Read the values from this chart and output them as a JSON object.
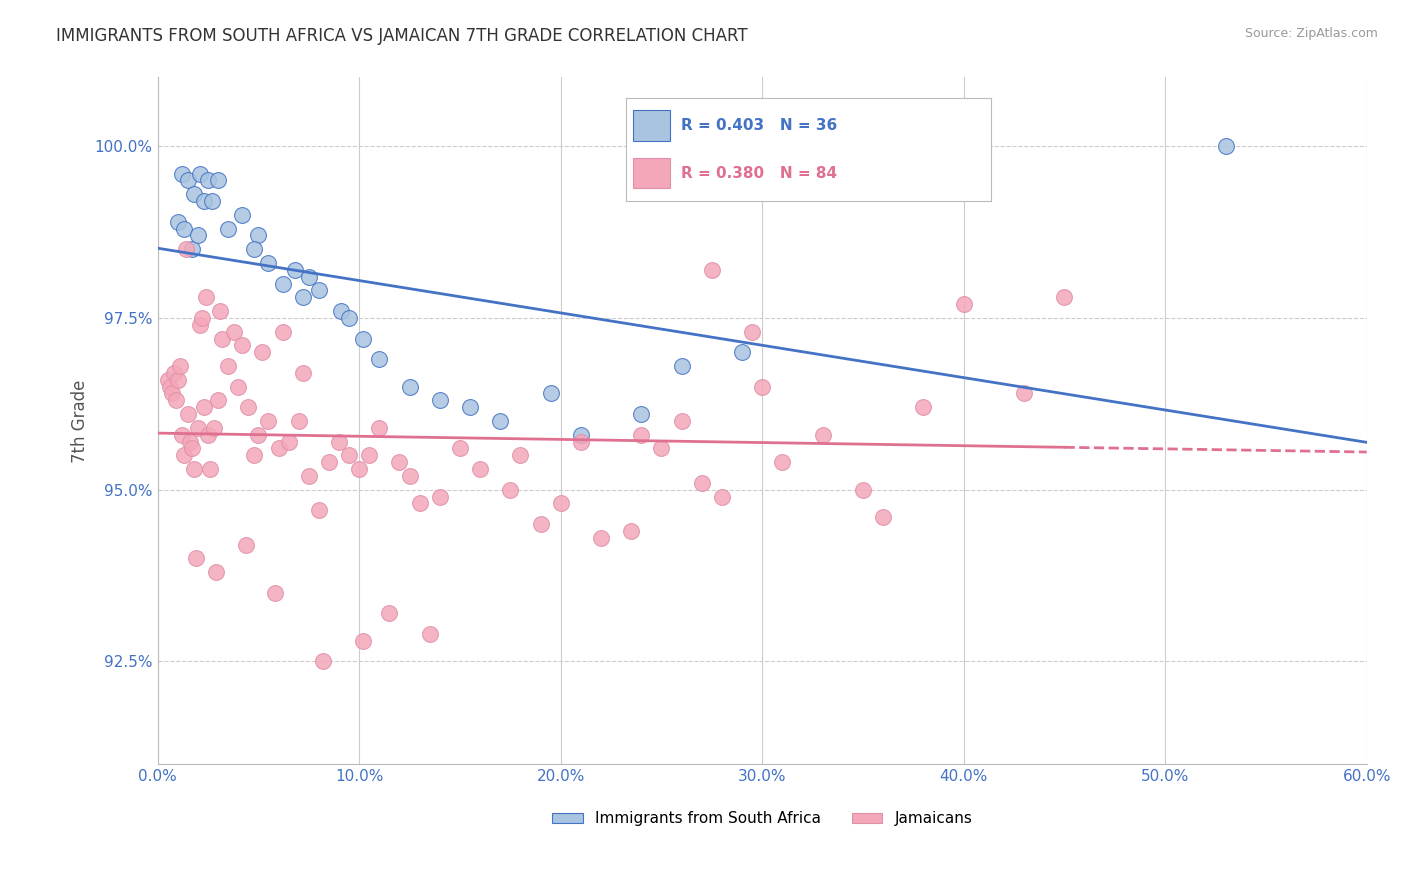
{
  "title": "IMMIGRANTS FROM SOUTH AFRICA VS JAMAICAN 7TH GRADE CORRELATION CHART",
  "source": "Source: ZipAtlas.com",
  "ylabel": "7th Grade",
  "x_tick_labels": [
    "0.0%",
    "10.0%",
    "20.0%",
    "30.0%",
    "40.0%",
    "50.0%",
    "60.0%"
  ],
  "x_tick_values": [
    0.0,
    10.0,
    20.0,
    30.0,
    40.0,
    50.0,
    60.0
  ],
  "y_tick_labels": [
    "92.5%",
    "95.0%",
    "97.5%",
    "100.0%"
  ],
  "y_tick_values": [
    92.5,
    95.0,
    97.5,
    100.0
  ],
  "xlim": [
    0.0,
    60.0
  ],
  "ylim": [
    91.0,
    101.0
  ],
  "legend_blue_text": "R = 0.403   N = 36",
  "legend_pink_text": "R = 0.380   N = 84",
  "legend_label_blue": "Immigrants from South Africa",
  "legend_label_pink": "Jamaicans",
  "blue_color": "#a8c4e0",
  "pink_color": "#f4a7b9",
  "trend_blue_color": "#4472c4",
  "trend_pink_color": "#e07090",
  "title_color": "#333333",
  "axis_label_color": "#555555",
  "tick_color": "#4472c4",
  "grid_color": "#cccccc",
  "background_color": "#ffffff",
  "source_color": "#999999",
  "blue_x": [
    1.2,
    1.5,
    2.1,
    2.5,
    3.0,
    1.8,
    2.3,
    2.7,
    3.5,
    4.2,
    5.0,
    4.8,
    5.5,
    6.2,
    6.8,
    7.5,
    7.2,
    8.0,
    9.1,
    9.5,
    10.2,
    11.0,
    12.5,
    14.0,
    15.5,
    17.0,
    19.5,
    21.0,
    24.0,
    26.0,
    29.0,
    1.0,
    1.3,
    1.7,
    53.0,
    2.0
  ],
  "blue_y": [
    99.6,
    99.5,
    99.6,
    99.5,
    99.5,
    99.3,
    99.2,
    99.2,
    98.8,
    99.0,
    98.7,
    98.5,
    98.3,
    98.0,
    98.2,
    98.1,
    97.8,
    97.9,
    97.6,
    97.5,
    97.2,
    96.9,
    96.5,
    96.3,
    96.2,
    96.0,
    96.4,
    95.8,
    96.1,
    96.8,
    97.0,
    98.9,
    98.8,
    98.5,
    100.0,
    98.7
  ],
  "pink_x": [
    0.5,
    0.6,
    0.7,
    0.8,
    0.9,
    1.0,
    1.1,
    1.2,
    1.3,
    1.5,
    1.6,
    1.7,
    1.8,
    2.0,
    2.1,
    2.2,
    2.3,
    2.5,
    2.6,
    2.8,
    3.0,
    3.2,
    3.5,
    3.8,
    4.0,
    4.5,
    4.8,
    5.0,
    5.5,
    6.0,
    6.5,
    7.0,
    7.5,
    8.0,
    8.5,
    9.0,
    9.5,
    10.0,
    10.5,
    11.0,
    12.0,
    12.5,
    13.0,
    14.0,
    15.0,
    16.0,
    17.5,
    18.0,
    19.0,
    20.0,
    21.0,
    22.0,
    23.5,
    24.0,
    25.0,
    26.0,
    27.0,
    28.0,
    29.5,
    30.0,
    31.0,
    33.0,
    35.0,
    36.0,
    38.0,
    40.0,
    43.0,
    1.4,
    2.4,
    3.1,
    4.2,
    5.2,
    6.2,
    7.2,
    1.9,
    2.9,
    4.4,
    5.8,
    8.2,
    10.2,
    11.5,
    13.5,
    27.5,
    45.0
  ],
  "pink_y": [
    96.6,
    96.5,
    96.4,
    96.7,
    96.3,
    96.6,
    96.8,
    95.8,
    95.5,
    96.1,
    95.7,
    95.6,
    95.3,
    95.9,
    97.4,
    97.5,
    96.2,
    95.8,
    95.3,
    95.9,
    96.3,
    97.2,
    96.8,
    97.3,
    96.5,
    96.2,
    95.5,
    95.8,
    96.0,
    95.6,
    95.7,
    96.0,
    95.2,
    94.7,
    95.4,
    95.7,
    95.5,
    95.3,
    95.5,
    95.9,
    95.4,
    95.2,
    94.8,
    94.9,
    95.6,
    95.3,
    95.0,
    95.5,
    94.5,
    94.8,
    95.7,
    94.3,
    94.4,
    95.8,
    95.6,
    96.0,
    95.1,
    94.9,
    97.3,
    96.5,
    95.4,
    95.8,
    95.0,
    94.6,
    96.2,
    97.7,
    96.4,
    98.5,
    97.8,
    97.6,
    97.1,
    97.0,
    97.3,
    96.7,
    94.0,
    93.8,
    94.2,
    93.5,
    92.5,
    92.8,
    93.2,
    92.9,
    98.2,
    97.8
  ]
}
